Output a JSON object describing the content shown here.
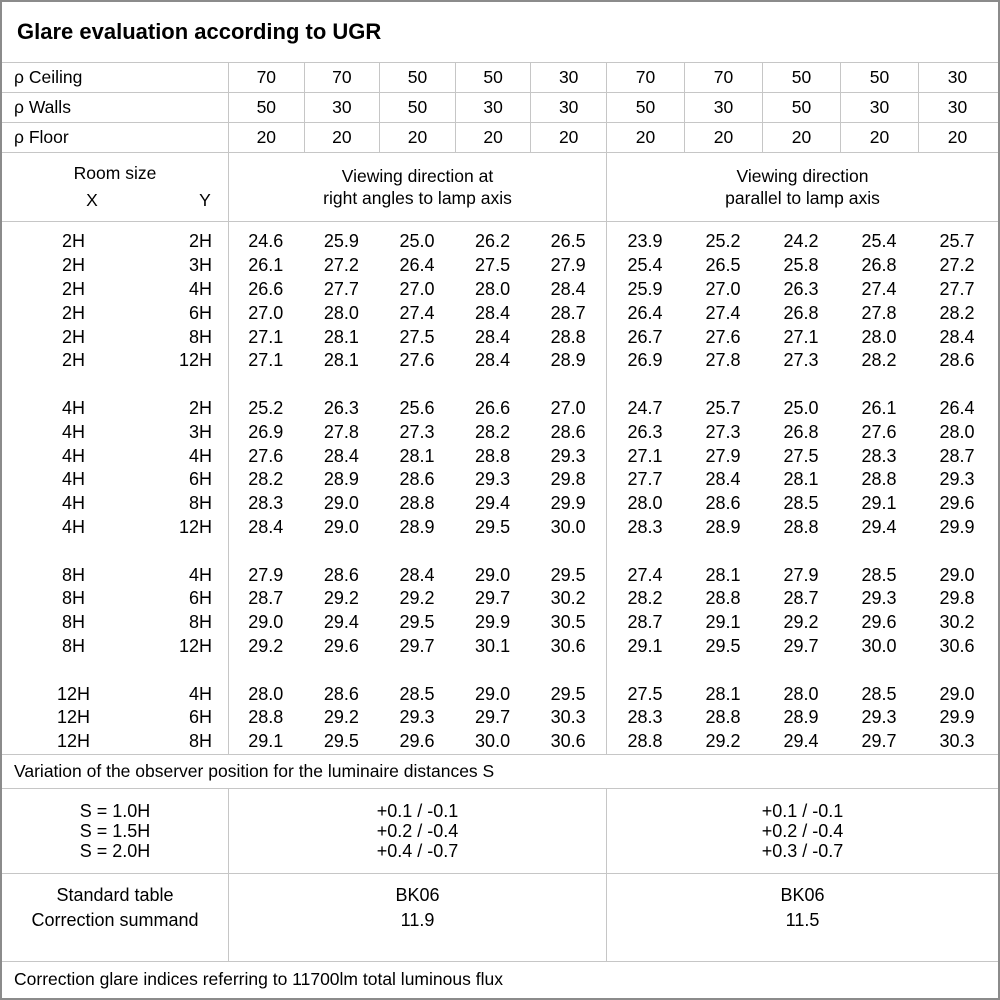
{
  "title": "Glare evaluation according to UGR",
  "reflectance_rows": [
    {
      "label": "ρ Ceiling",
      "values": [
        "70",
        "70",
        "50",
        "50",
        "30",
        "70",
        "70",
        "50",
        "50",
        "30"
      ]
    },
    {
      "label": "ρ Walls",
      "values": [
        "50",
        "30",
        "50",
        "30",
        "30",
        "50",
        "30",
        "50",
        "30",
        "30"
      ]
    },
    {
      "label": "ρ Floor",
      "values": [
        "20",
        "20",
        "20",
        "20",
        "20",
        "20",
        "20",
        "20",
        "20",
        "20"
      ]
    }
  ],
  "room_size": {
    "label": "Room size",
    "x": "X",
    "y": "Y"
  },
  "groups": {
    "perpendicular": [
      "Viewing direction at",
      "right angles to lamp axis"
    ],
    "parallel": [
      "Viewing direction",
      "parallel to lamp axis"
    ]
  },
  "ugr_blocks": [
    {
      "rows": [
        {
          "x": "2H",
          "y": "2H",
          "perpendicular": [
            "24.6",
            "25.9",
            "25.0",
            "26.2",
            "26.5"
          ],
          "parallel": [
            "23.9",
            "25.2",
            "24.2",
            "25.4",
            "25.7"
          ]
        },
        {
          "x": "2H",
          "y": "3H",
          "perpendicular": [
            "26.1",
            "27.2",
            "26.4",
            "27.5",
            "27.9"
          ],
          "parallel": [
            "25.4",
            "26.5",
            "25.8",
            "26.8",
            "27.2"
          ]
        },
        {
          "x": "2H",
          "y": "4H",
          "perpendicular": [
            "26.6",
            "27.7",
            "27.0",
            "28.0",
            "28.4"
          ],
          "parallel": [
            "25.9",
            "27.0",
            "26.3",
            "27.4",
            "27.7"
          ]
        },
        {
          "x": "2H",
          "y": "6H",
          "perpendicular": [
            "27.0",
            "28.0",
            "27.4",
            "28.4",
            "28.7"
          ],
          "parallel": [
            "26.4",
            "27.4",
            "26.8",
            "27.8",
            "28.2"
          ]
        },
        {
          "x": "2H",
          "y": "8H",
          "perpendicular": [
            "27.1",
            "28.1",
            "27.5",
            "28.4",
            "28.8"
          ],
          "parallel": [
            "26.7",
            "27.6",
            "27.1",
            "28.0",
            "28.4"
          ]
        },
        {
          "x": "2H",
          "y": "12H",
          "perpendicular": [
            "27.1",
            "28.1",
            "27.6",
            "28.4",
            "28.9"
          ],
          "parallel": [
            "26.9",
            "27.8",
            "27.3",
            "28.2",
            "28.6"
          ]
        }
      ]
    },
    {
      "rows": [
        {
          "x": "4H",
          "y": "2H",
          "perpendicular": [
            "25.2",
            "26.3",
            "25.6",
            "26.6",
            "27.0"
          ],
          "parallel": [
            "24.7",
            "25.7",
            "25.0",
            "26.1",
            "26.4"
          ]
        },
        {
          "x": "4H",
          "y": "3H",
          "perpendicular": [
            "26.9",
            "27.8",
            "27.3",
            "28.2",
            "28.6"
          ],
          "parallel": [
            "26.3",
            "27.3",
            "26.8",
            "27.6",
            "28.0"
          ]
        },
        {
          "x": "4H",
          "y": "4H",
          "perpendicular": [
            "27.6",
            "28.4",
            "28.1",
            "28.8",
            "29.3"
          ],
          "parallel": [
            "27.1",
            "27.9",
            "27.5",
            "28.3",
            "28.7"
          ]
        },
        {
          "x": "4H",
          "y": "6H",
          "perpendicular": [
            "28.2",
            "28.9",
            "28.6",
            "29.3",
            "29.8"
          ],
          "parallel": [
            "27.7",
            "28.4",
            "28.1",
            "28.8",
            "29.3"
          ]
        },
        {
          "x": "4H",
          "y": "8H",
          "perpendicular": [
            "28.3",
            "29.0",
            "28.8",
            "29.4",
            "29.9"
          ],
          "parallel": [
            "28.0",
            "28.6",
            "28.5",
            "29.1",
            "29.6"
          ]
        },
        {
          "x": "4H",
          "y": "12H",
          "perpendicular": [
            "28.4",
            "29.0",
            "28.9",
            "29.5",
            "30.0"
          ],
          "parallel": [
            "28.3",
            "28.9",
            "28.8",
            "29.4",
            "29.9"
          ]
        }
      ]
    },
    {
      "rows": [
        {
          "x": "8H",
          "y": "4H",
          "perpendicular": [
            "27.9",
            "28.6",
            "28.4",
            "29.0",
            "29.5"
          ],
          "parallel": [
            "27.4",
            "28.1",
            "27.9",
            "28.5",
            "29.0"
          ]
        },
        {
          "x": "8H",
          "y": "6H",
          "perpendicular": [
            "28.7",
            "29.2",
            "29.2",
            "29.7",
            "30.2"
          ],
          "parallel": [
            "28.2",
            "28.8",
            "28.7",
            "29.3",
            "29.8"
          ]
        },
        {
          "x": "8H",
          "y": "8H",
          "perpendicular": [
            "29.0",
            "29.4",
            "29.5",
            "29.9",
            "30.5"
          ],
          "parallel": [
            "28.7",
            "29.1",
            "29.2",
            "29.6",
            "30.2"
          ]
        },
        {
          "x": "8H",
          "y": "12H",
          "perpendicular": [
            "29.2",
            "29.6",
            "29.7",
            "30.1",
            "30.6"
          ],
          "parallel": [
            "29.1",
            "29.5",
            "29.7",
            "30.0",
            "30.6"
          ]
        }
      ]
    },
    {
      "rows": [
        {
          "x": "12H",
          "y": "4H",
          "perpendicular": [
            "28.0",
            "28.6",
            "28.5",
            "29.0",
            "29.5"
          ],
          "parallel": [
            "27.5",
            "28.1",
            "28.0",
            "28.5",
            "29.0"
          ]
        },
        {
          "x": "12H",
          "y": "6H",
          "perpendicular": [
            "28.8",
            "29.2",
            "29.3",
            "29.7",
            "30.3"
          ],
          "parallel": [
            "28.3",
            "28.8",
            "28.9",
            "29.3",
            "29.9"
          ]
        },
        {
          "x": "12H",
          "y": "8H",
          "perpendicular": [
            "29.1",
            "29.5",
            "29.6",
            "30.0",
            "30.6"
          ],
          "parallel": [
            "28.8",
            "29.2",
            "29.4",
            "29.7",
            "30.3"
          ]
        }
      ]
    }
  ],
  "variation_note": "Variation of the observer position for the luminaire distances S",
  "variation": {
    "labels": [
      "S = 1.0H",
      "S = 1.5H",
      "S = 2.0H"
    ],
    "perpendicular": [
      "+0.1 / -0.1",
      "+0.2 / -0.4",
      "+0.4 / -0.7"
    ],
    "parallel": [
      "+0.1 / -0.1",
      "+0.2 / -0.4",
      "+0.3 / -0.7"
    ]
  },
  "summary": {
    "labels": [
      "Standard table",
      "Correction summand"
    ],
    "perpendicular": [
      "BK06",
      "11.9"
    ],
    "parallel": [
      "BK06",
      "11.5"
    ]
  },
  "footer": "Correction glare indices referring to 11700lm total luminous flux"
}
